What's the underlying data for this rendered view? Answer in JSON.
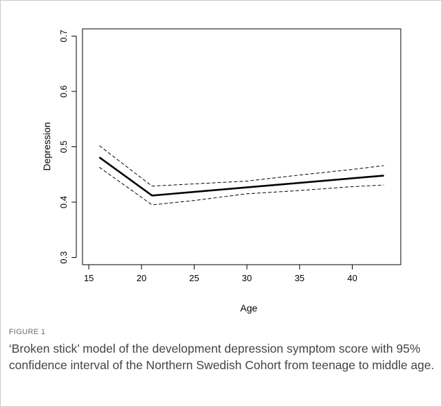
{
  "chart_data": {
    "type": "line",
    "title": "",
    "xlabel": "Age",
    "ylabel": "Depression",
    "xlim": [
      14.4,
      44.6
    ],
    "ylim": [
      0.287,
      0.713
    ],
    "x_ticks": [
      "15",
      "20",
      "25",
      "30",
      "35",
      "40"
    ],
    "y_ticks": [
      "0.3",
      "0.4",
      "0.5",
      "0.6",
      "0.7"
    ],
    "grid": false,
    "legend": "none",
    "series": [
      {
        "style": "solid",
        "color": "#000000",
        "points": [
          [
            16,
            0.481
          ],
          [
            21,
            0.412
          ],
          [
            43,
            0.448
          ]
        ]
      },
      {
        "style": "dashed",
        "color": "#000000",
        "points": [
          [
            16,
            0.502
          ],
          [
            21,
            0.429
          ],
          [
            30,
            0.438
          ],
          [
            35,
            0.449
          ],
          [
            40,
            0.459
          ],
          [
            43,
            0.466
          ]
        ]
      },
      {
        "style": "dashed",
        "color": "#000000",
        "points": [
          [
            16,
            0.463
          ],
          [
            21,
            0.395
          ],
          [
            25,
            0.403
          ],
          [
            30,
            0.415
          ],
          [
            35,
            0.421
          ],
          [
            40,
            0.428
          ],
          [
            43,
            0.431
          ]
        ]
      }
    ]
  },
  "caption": {
    "label": "FIGURE 1",
    "text": "‘Broken stick’ model of the development depression symptom score with 95% confidence interval of the Northern Swedish Cohort from teenage to middle age."
  }
}
